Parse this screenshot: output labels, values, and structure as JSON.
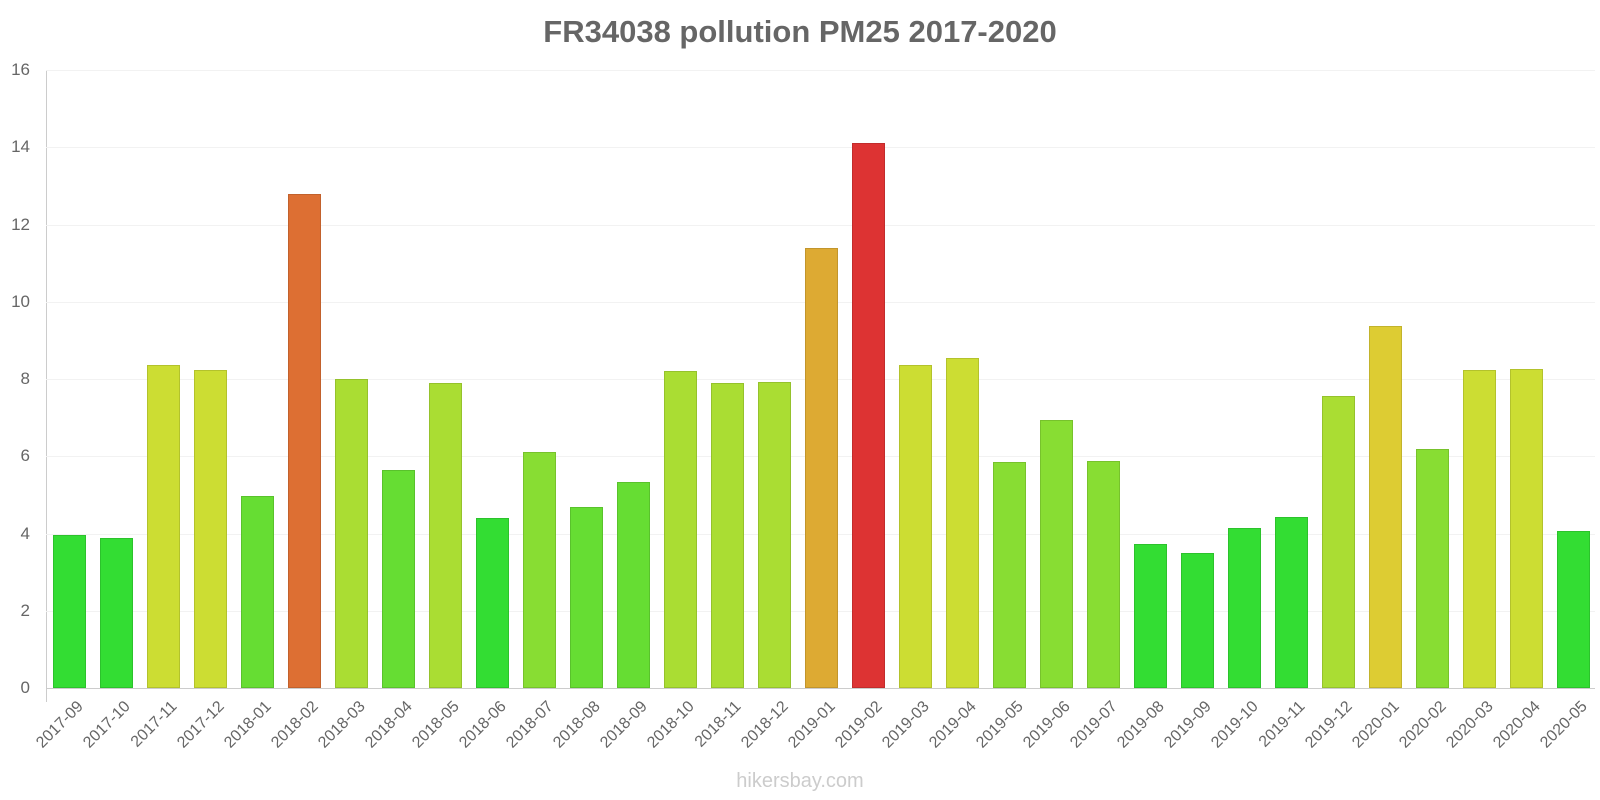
{
  "chart_data": {
    "type": "bar",
    "title": "FR34038 pollution PM25 2017-2020",
    "xlabel": "",
    "ylabel": "",
    "ylim": [
      0,
      16
    ],
    "yticks": [
      0,
      2,
      4,
      6,
      8,
      10,
      12,
      14,
      16
    ],
    "grid": true,
    "legend": null,
    "categories": [
      "2017-09",
      "2017-10",
      "2017-11",
      "2017-12",
      "2018-01",
      "2018-02",
      "2018-03",
      "2018-04",
      "2018-05",
      "2018-06",
      "2018-07",
      "2018-08",
      "2018-09",
      "2018-10",
      "2018-11",
      "2018-12",
      "2019-01",
      "2019-02",
      "2019-03",
      "2019-04",
      "2019-05",
      "2019-06",
      "2019-07",
      "2019-08",
      "2019-09",
      "2019-10",
      "2019-11",
      "2019-12",
      "2020-01",
      "2020-02",
      "2020-03",
      "2020-04",
      "2020-05"
    ],
    "values": [
      3.95,
      3.88,
      8.36,
      8.23,
      4.98,
      12.8,
      7.99,
      5.64,
      7.9,
      4.4,
      6.1,
      4.68,
      5.33,
      8.21,
      7.9,
      7.93,
      11.39,
      14.1,
      8.37,
      8.55,
      5.85,
      6.94,
      5.88,
      3.73,
      3.49,
      4.15,
      4.42,
      7.57,
      9.38,
      6.19,
      8.24,
      8.27,
      4.06
    ],
    "colors": [
      "#33dd33",
      "#33dd33",
      "#ccdd33",
      "#ccdd33",
      "#66dd33",
      "#dd6f33",
      "#aadd33",
      "#66dd33",
      "#aadd33",
      "#33dd33",
      "#88dd33",
      "#66dd33",
      "#66dd33",
      "#aadd33",
      "#aadd33",
      "#aadd33",
      "#ddaa33",
      "#dd3333",
      "#ccdd33",
      "#ccdd33",
      "#88dd33",
      "#88dd33",
      "#88dd33",
      "#33dd33",
      "#33dd33",
      "#33dd33",
      "#33dd33",
      "#aadd33",
      "#ddcc33",
      "#88dd33",
      "#ccdd33",
      "#ccdd33",
      "#33dd33"
    ]
  },
  "watermark": "hikersbay.com"
}
